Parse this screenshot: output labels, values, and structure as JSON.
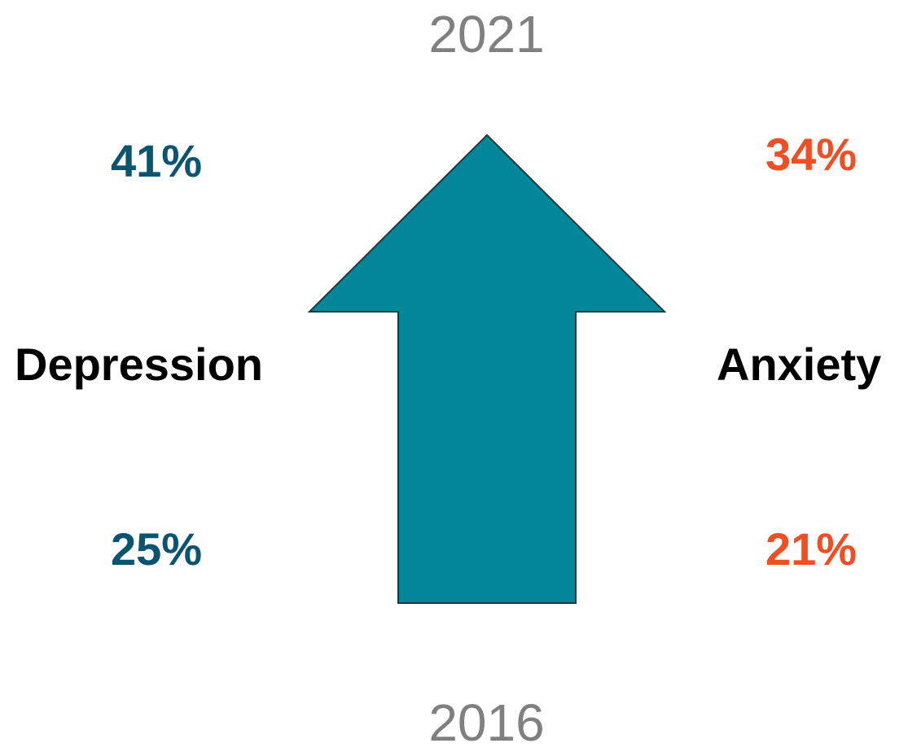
{
  "years": {
    "top": "2021",
    "bottom": "2016"
  },
  "depression": {
    "label": "Depression",
    "value_2021": "41%",
    "value_2016": "25%"
  },
  "anxiety": {
    "label": "Anxiety",
    "value_2021": "34%",
    "value_2016": "21%"
  },
  "colors": {
    "year_text": "#808080",
    "depression": "#0b5470",
    "anxiety": "#f04e23",
    "arrow_fill": "#02869a",
    "arrow_stroke": "#1b3a40"
  },
  "icons": {
    "arrow": "up-arrow-icon"
  }
}
